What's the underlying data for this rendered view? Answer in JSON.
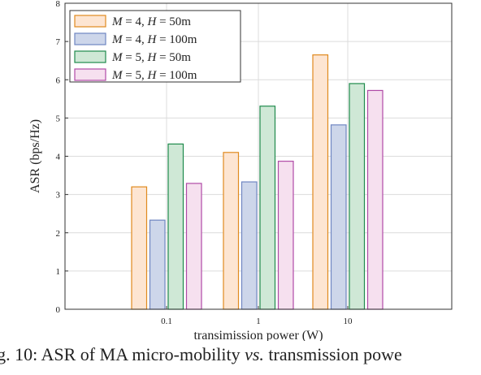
{
  "chart_data": {
    "type": "bar",
    "xlabel": "transimission power (W)",
    "ylabel": "ASR (bps/Hz)",
    "ylim": [
      0,
      8
    ],
    "yticks": [
      "0",
      "1",
      "2",
      "3",
      "4",
      "5",
      "6",
      "7",
      "8"
    ],
    "categories": [
      "0.1",
      "1",
      "10"
    ],
    "grid": true,
    "legend_position": "top-left",
    "series": [
      {
        "name": "M = 4, H = 50m",
        "name_parts": [
          "M",
          " = 4, ",
          "H",
          " = 50m"
        ],
        "values": [
          3.2,
          4.1,
          6.65
        ],
        "fill": "#fde5d2",
        "stroke": "#e08a1e"
      },
      {
        "name": "M = 4, H = 100m",
        "name_parts": [
          "M",
          " = 4, ",
          "H",
          " = 100m"
        ],
        "values": [
          2.33,
          3.33,
          4.82
        ],
        "fill": "#cdd6ea",
        "stroke": "#6f86c2"
      },
      {
        "name": "M = 5, H = 50m",
        "name_parts": [
          "M",
          " = 5, ",
          "H",
          " = 50m"
        ],
        "values": [
          4.32,
          5.31,
          5.9
        ],
        "fill": "#cfe8d6",
        "stroke": "#1f8a4c"
      },
      {
        "name": "M = 5, H = 100m",
        "name_parts": [
          "M",
          " = 5, ",
          "H",
          " = 100m"
        ],
        "values": [
          3.29,
          3.87,
          5.72
        ],
        "fill": "#f6e0ef",
        "stroke": "#b04aa7"
      }
    ]
  },
  "caption": {
    "prefix": "ig. 10: ASR of MA micro-mobility ",
    "emphasis": "vs.",
    "suffix": " transmission powe"
  }
}
